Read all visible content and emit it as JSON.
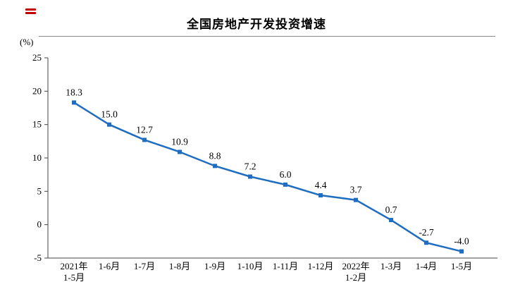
{
  "page": {
    "background": "#ffffff"
  },
  "decoration": {
    "red_mark_color": "#c00000"
  },
  "chart_data": {
    "type": "line",
    "title": "全国房地产开发投资增速",
    "xlabel": "",
    "ylabel": "(%)",
    "categories": [
      "2021年\n1-5月",
      "1-6月",
      "1-7月",
      "1-8月",
      "1-9月",
      "1-10月",
      "1-11月",
      "1-12月",
      "2022年\n1-2月",
      "1-3月",
      "1-4月",
      "1-5月"
    ],
    "values": [
      18.3,
      15.0,
      12.7,
      10.9,
      8.8,
      7.2,
      6.0,
      4.4,
      3.7,
      0.7,
      -2.7,
      -4.0
    ],
    "ylim": [
      -5,
      25
    ],
    "yticks": [
      25,
      20,
      15,
      10,
      5,
      0,
      -5
    ],
    "grid": false,
    "legend": "none",
    "line_color": "#1F6DC1",
    "marker": "square",
    "axis_color": "#444444",
    "label_format": "one-decimal"
  }
}
